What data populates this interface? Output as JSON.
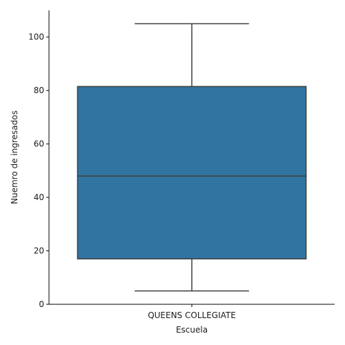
{
  "chart_data": {
    "type": "box",
    "title": "",
    "xlabel": "Escuela",
    "ylabel": "Nuemro de ingresados",
    "categories": [
      "QUEENS COLLEGIATE"
    ],
    "boxes": [
      {
        "category": "QUEENS COLLEGIATE",
        "whisker_low": 5,
        "q1": 17,
        "median": 48,
        "q3": 81.5,
        "whisker_high": 105,
        "color": "#3274a1"
      }
    ],
    "ylim": [
      0,
      110
    ],
    "yticks": [
      0,
      20,
      40,
      60,
      80,
      100
    ],
    "grid": false,
    "legend": "none",
    "line_color": "#3d3d3d"
  }
}
